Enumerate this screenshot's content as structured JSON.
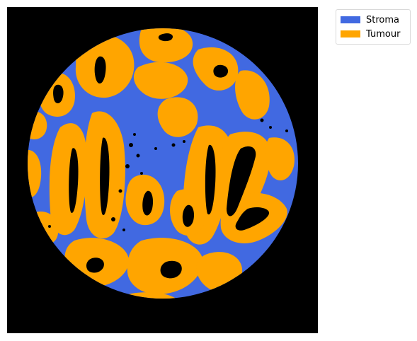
{
  "legend": {
    "items": [
      {
        "label": "Stroma",
        "color": "#4169e1"
      },
      {
        "label": "Tumour",
        "color": "#ffa500"
      }
    ]
  },
  "colors": {
    "background": "#000000",
    "stroma": "#4169e1",
    "tumour": "#ffa500",
    "lumen": "#000000"
  }
}
